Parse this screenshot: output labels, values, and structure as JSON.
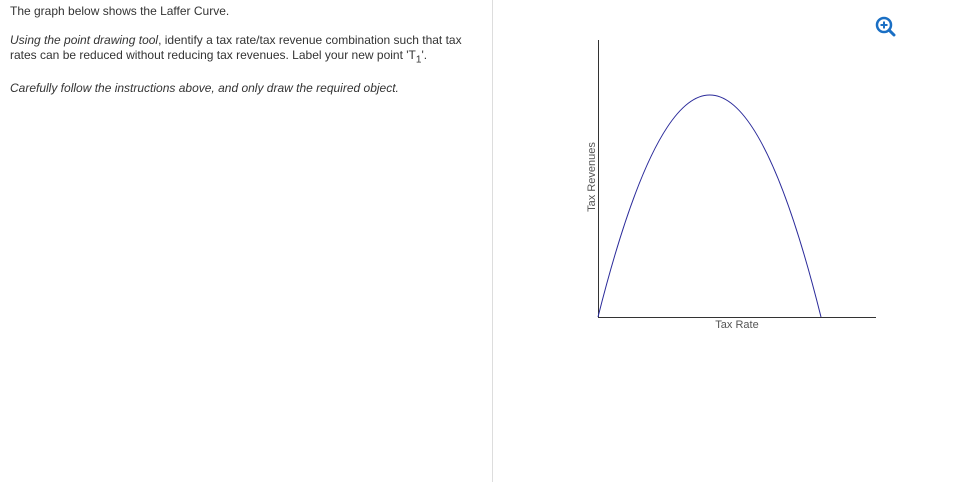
{
  "question": {
    "intro": "The graph below shows the Laffer Curve.",
    "instruction_italic": "Using the point drawing tool",
    "instruction_rest": ", identify a tax rate/tax revenue combination such that tax rates can be reduced without reducing tax revenues.  Label your new point ",
    "point_label_open": "'T",
    "point_label_sub": "1",
    "point_label_close": "'.",
    "caution": "Carefully follow the instructions above, and only draw the required object."
  },
  "graph": {
    "y_axis_label": "Tax Revenues",
    "x_axis_label": "Tax Rate"
  }
}
